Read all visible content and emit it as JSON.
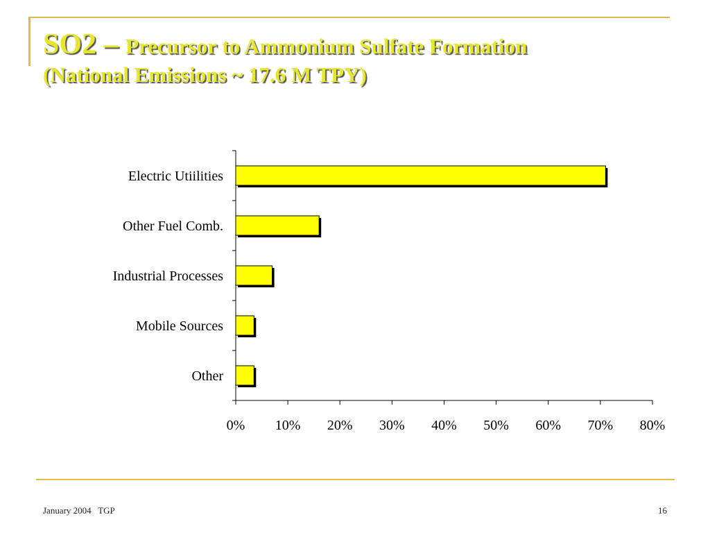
{
  "slide": {
    "title_prefix": "SO2 – ",
    "title_main": "Precursor to Ammonium Sulfate Formation",
    "subtitle": "(National Emissions ~ 17.6 M TPY)"
  },
  "footer": {
    "left": "January 2004   TGP",
    "page": "16"
  },
  "colors": {
    "title": "#e6e62e",
    "accent_lines": "#e8b74a",
    "bar_fill": "#ffff00",
    "bar_border": "#000000",
    "bar_shadow": "#000000"
  },
  "chart_data": {
    "type": "bar",
    "orientation": "horizontal",
    "categories": [
      "Electric Utiilities",
      "Other Fuel Comb.",
      "Industrial Processes",
      "Mobile Sources",
      "Other"
    ],
    "values": [
      71,
      16,
      7,
      3.5,
      3.5
    ],
    "unit": "%",
    "xlim": [
      0,
      80
    ],
    "ticks": [
      0,
      10,
      20,
      30,
      40,
      50,
      60,
      70,
      80
    ],
    "tick_labels": [
      "0%",
      "10%",
      "20%",
      "30%",
      "40%",
      "50%",
      "60%",
      "70%",
      "80%"
    ],
    "title": "",
    "xlabel": "",
    "ylabel": "",
    "grid": false,
    "legend": "none"
  }
}
